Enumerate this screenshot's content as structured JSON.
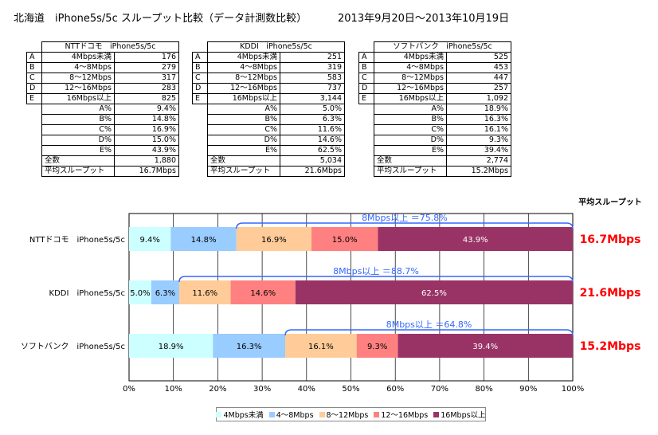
{
  "header": {
    "title": "北海道　iPhone5s/5c スループット比較（データ計測数比較）",
    "period": "2013年9月20日～2013年10月19日"
  },
  "tables": [
    {
      "title": "NTTドコモ　iPhone5s/5c",
      "rows": [
        {
          "key": "A",
          "label": "4Mbps未満",
          "value": "176"
        },
        {
          "key": "B",
          "label": "4～8Mbps",
          "value": "279"
        },
        {
          "key": "C",
          "label": "8～12Mbps",
          "value": "317"
        },
        {
          "key": "D",
          "label": "12～16Mbps",
          "value": "283"
        },
        {
          "key": "E",
          "label": "16Mbps以上",
          "value": "825"
        }
      ],
      "pct": [
        {
          "label": "A%",
          "value": "9.4%"
        },
        {
          "label": "B%",
          "value": "14.8%"
        },
        {
          "label": "C%",
          "value": "16.9%"
        },
        {
          "label": "D%",
          "value": "15.0%"
        },
        {
          "label": "E%",
          "value": "43.9%"
        }
      ],
      "total_label": "全数",
      "total": "1,880",
      "avg_label": "平均スループット",
      "avg": "16.7Mbps"
    },
    {
      "title": "KDDI　iPhone5s/5c",
      "rows": [
        {
          "key": "A",
          "label": "4Mbps未満",
          "value": "251"
        },
        {
          "key": "B",
          "label": "4～8Mbps",
          "value": "319"
        },
        {
          "key": "C",
          "label": "8～12Mbps",
          "value": "583"
        },
        {
          "key": "D",
          "label": "12～16Mbps",
          "value": "737"
        },
        {
          "key": "E",
          "label": "16Mbps以上",
          "value": "3,144"
        }
      ],
      "pct": [
        {
          "label": "A%",
          "value": "5.0%"
        },
        {
          "label": "B%",
          "value": "6.3%"
        },
        {
          "label": "C%",
          "value": "11.6%"
        },
        {
          "label": "D%",
          "value": "14.6%"
        },
        {
          "label": "E%",
          "value": "62.5%"
        }
      ],
      "total_label": "全数",
      "total": "5,034",
      "avg_label": "平均スループット",
      "avg": "21.6Mbps"
    },
    {
      "title": "ソフトバンク　iPhone5s/5c",
      "rows": [
        {
          "key": "A",
          "label": "4Mbps未満",
          "value": "525"
        },
        {
          "key": "B",
          "label": "4～8Mbps",
          "value": "453"
        },
        {
          "key": "C",
          "label": "8～12Mbps",
          "value": "447"
        },
        {
          "key": "D",
          "label": "12～16Mbps",
          "value": "257"
        },
        {
          "key": "E",
          "label": "16Mbps以上",
          "value": "1,092"
        }
      ],
      "pct": [
        {
          "label": "A%",
          "value": "18.9%"
        },
        {
          "label": "B%",
          "value": "16.3%"
        },
        {
          "label": "C%",
          "value": "16.1%"
        },
        {
          "label": "D%",
          "value": "9.3%"
        },
        {
          "label": "E%",
          "value": "39.4%"
        }
      ],
      "total_label": "全数",
      "total": "2,774",
      "avg_label": "平均スループット",
      "avg": "15.2Mbps"
    }
  ],
  "chart_data": {
    "type": "bar",
    "orientation": "horizontal",
    "stacked": "percent",
    "categories": [
      "NTTドコモ　iPhone5s/5c",
      "KDDI　iPhone5s/5c",
      "ソフトバンク　iPhone5s/5c"
    ],
    "series": [
      {
        "name": "4Mbps未満",
        "values": [
          9.4,
          5.0,
          18.9
        ],
        "labels": [
          "9.4%",
          "5.0%",
          "18.9%"
        ],
        "color": "#ccffff"
      },
      {
        "name": "4～8Mbps",
        "values": [
          14.8,
          6.3,
          16.3
        ],
        "labels": [
          "14.8%",
          "6.3%",
          "16.3%"
        ],
        "color": "#99ccff"
      },
      {
        "name": "8～12Mbps",
        "values": [
          16.9,
          11.6,
          16.1
        ],
        "labels": [
          "16.9%",
          "11.6%",
          "16.1%"
        ],
        "color": "#ffcc99"
      },
      {
        "name": "12～16Mbps",
        "values": [
          15.0,
          14.6,
          9.3
        ],
        "labels": [
          "15.0%",
          "14.6%",
          "9.3%"
        ],
        "color": "#ff8080"
      },
      {
        "name": "16Mbps以上",
        "values": [
          43.9,
          62.5,
          39.4
        ],
        "labels": [
          "43.9%",
          "62.5%",
          "39.4%"
        ],
        "color": "#993366"
      }
    ],
    "annotations": [
      "8Mbps以上 ＝75.8%",
      "8Mbps以上 ＝88.7%",
      "8Mbps以上 ＝64.8%"
    ],
    "throughput_title": "平均スループット",
    "throughput": [
      "16.7Mbps",
      "21.6Mbps",
      "15.2Mbps"
    ],
    "xticks": [
      "0%",
      "10%",
      "20%",
      "30%",
      "40%",
      "50%",
      "60%",
      "70%",
      "80%",
      "90%",
      "100%"
    ],
    "xlim": [
      0,
      100
    ],
    "grid": true,
    "legend_position": "bottom",
    "colors": {
      "annotation": "#3366ff",
      "throughput": "#ff0000",
      "grid": "#000000"
    }
  }
}
